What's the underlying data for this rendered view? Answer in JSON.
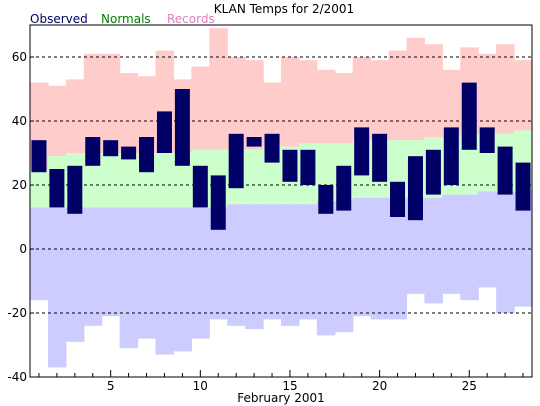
{
  "chart_data": {
    "type": "bar",
    "title": "KLAN Temps for 2/2001",
    "xlabel": "February 2001",
    "ylabel": "",
    "ylim": [
      -40,
      70
    ],
    "xlim": [
      0.5,
      28.5
    ],
    "grid": true,
    "legend_placement": "top-left",
    "y_ticks": [
      -40,
      -20,
      0,
      20,
      40,
      60
    ],
    "x_ticks": [
      5,
      10,
      15,
      20,
      25
    ],
    "legend": [
      {
        "name": "Observed",
        "color": "#000066"
      },
      {
        "name": "Normals",
        "color": "#008000"
      },
      {
        "name": "Records",
        "color": "#dd7fbf"
      }
    ],
    "colors": {
      "observed": "#000066",
      "normals": "#ccffcc",
      "record_high": "#ffcccc",
      "record_low": "#ccccff"
    },
    "days": [
      1,
      2,
      3,
      4,
      5,
      6,
      7,
      8,
      9,
      10,
      11,
      12,
      13,
      14,
      15,
      16,
      17,
      18,
      19,
      20,
      21,
      22,
      23,
      24,
      25,
      26,
      27,
      28
    ],
    "series": [
      {
        "name": "Observed",
        "low": [
          24,
          13,
          11,
          26,
          29,
          28,
          24,
          30,
          26,
          13,
          6,
          19,
          32,
          27,
          21,
          20,
          11,
          12,
          23,
          21,
          10,
          9,
          17,
          20,
          31,
          30,
          17,
          12
        ],
        "high": [
          34,
          25,
          26,
          35,
          34,
          32,
          35,
          43,
          50,
          26,
          23,
          36,
          35,
          36,
          31,
          31,
          20,
          26,
          38,
          36,
          21,
          29,
          31,
          38,
          52,
          38,
          32,
          27
        ]
      },
      {
        "name": "Normals",
        "low": [
          13,
          13,
          13,
          13,
          13,
          13,
          13,
          13,
          13,
          13,
          13,
          14,
          14,
          14,
          14,
          14,
          15,
          15,
          16,
          16,
          16,
          16,
          16,
          17,
          17,
          18,
          18,
          18
        ],
        "high": [
          25,
          29,
          30,
          30,
          30,
          30,
          30,
          30,
          30,
          31,
          31,
          31,
          31,
          32,
          32,
          33,
          33,
          33,
          34,
          34,
          34,
          34,
          35,
          35,
          36,
          36,
          36,
          37
        ]
      },
      {
        "name": "Records",
        "low": [
          -16,
          -37,
          -29,
          -24,
          -21,
          -31,
          -28,
          -33,
          -32,
          -28,
          -22,
          -24,
          -25,
          -22,
          -24,
          -22,
          -27,
          -26,
          -21,
          -22,
          -22,
          -14,
          -17,
          -14,
          -16,
          -12,
          -20,
          -18
        ],
        "high": [
          52,
          51,
          53,
          61,
          61,
          55,
          54,
          62,
          53,
          57,
          69,
          60,
          59,
          52,
          60,
          59,
          56,
          55,
          60,
          59,
          62,
          66,
          64,
          56,
          63,
          61,
          64,
          59
        ]
      }
    ]
  }
}
